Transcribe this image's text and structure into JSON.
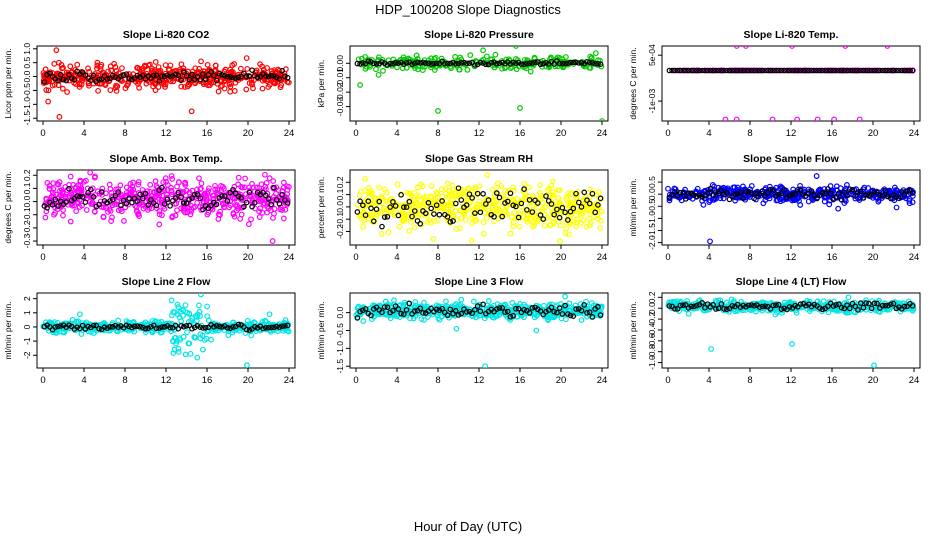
{
  "figure": {
    "title": "HDP_100208  Slope Diagnostics",
    "xlabel": "Hour of Day (UTC)"
  },
  "chart_data": [
    {
      "type": "scatter",
      "title": "Slope Li-820 CO2",
      "ylabel": "Licor ppm per min.",
      "xlim": [
        0,
        24
      ],
      "ylim": [
        -1.6,
        1.1
      ],
      "xticks": [
        "0",
        "4",
        "8",
        "12",
        "16",
        "20",
        "24"
      ],
      "yticks": [
        1,
        0.5,
        0,
        -0.5,
        -1,
        -1.5
      ],
      "ytick_labels": [
        "1.0",
        "0.5",
        "0.0",
        "-0.5",
        "-1.0",
        "-1.5"
      ],
      "color": "#ff0000",
      "spread": 0.32,
      "center": 0,
      "black_spread": 0.12,
      "outliers": [
        [
          1.3,
          0.95
        ],
        [
          14.5,
          -1.25
        ],
        [
          1.6,
          -1.45
        ],
        [
          0.5,
          -0.9
        ]
      ],
      "series": [
        {
          "name": "",
          "color": "#ff0000",
          "n_points": 480
        },
        {
          "name": "",
          "color": "#000000",
          "n_points": 90
        }
      ]
    },
    {
      "type": "scatter",
      "title": "Slope Li-820 Pressure",
      "ylabel": "kPa per min.",
      "xlim": [
        0,
        24
      ],
      "ylim": [
        -0.04,
        0.012
      ],
      "xticks": [
        "0",
        "4",
        "8",
        "12",
        "16",
        "20",
        "24"
      ],
      "yticks": [
        0,
        -0.01,
        -0.02,
        -0.03
      ],
      "ytick_labels": [
        "0.00",
        "-0.01",
        "-0.02",
        "-0.03"
      ],
      "color": "#00cc00",
      "spread": 0.0035,
      "center": 0,
      "black_spread": 0.0008,
      "outliers": [
        [
          8,
          -0.033
        ],
        [
          16,
          -0.031
        ],
        [
          24,
          -0.04
        ],
        [
          0.4,
          -0.015
        ],
        [
          12.4,
          0.009
        ],
        [
          15.6,
          0.012
        ],
        [
          13.6,
          0.006
        ],
        [
          2.2,
          -0.008
        ],
        [
          23.4,
          0.007
        ]
      ],
      "series": [
        {
          "name": "",
          "color": "#00cc00",
          "n_points": 230
        },
        {
          "name": "",
          "color": "#000000",
          "n_points": 90
        }
      ]
    },
    {
      "type": "scatter",
      "title": "Slope Li-820 Temp.",
      "ylabel": "degrees C per min.",
      "xlim": [
        0,
        24
      ],
      "ylim": [
        -0.00165,
        0.0008
      ],
      "xticks": [
        "0",
        "4",
        "8",
        "12",
        "16",
        "20",
        "24"
      ],
      "yticks": [
        0.0005,
        -0.001
      ],
      "ytick_labels": [
        "5e-04",
        "-1e-03"
      ],
      "color": "#ff00ff",
      "spread": 0,
      "center": 0,
      "black_spread": 0,
      "line_band": true,
      "outliers": [
        [
          6.7,
          0.0008
        ],
        [
          7.6,
          0.0008
        ],
        [
          12.1,
          0.0008
        ],
        [
          17.3,
          0.0008
        ],
        [
          21.4,
          0.0008
        ],
        [
          6.7,
          -0.0016
        ],
        [
          12.6,
          -0.0016
        ],
        [
          14.6,
          -0.0016
        ],
        [
          16.2,
          -0.0016
        ],
        [
          18.7,
          -0.0016
        ],
        [
          5.6,
          -0.0016
        ],
        [
          10.2,
          -0.0016
        ]
      ],
      "series": [
        {
          "name": "",
          "color": "#ff00ff",
          "n_points": 150
        },
        {
          "name": "",
          "color": "#000000",
          "n_points": 90
        }
      ]
    },
    {
      "type": "scatter",
      "title": "Slope Amb. Box Temp.",
      "ylabel": "degrees C per min.",
      "xlim": [
        0,
        24
      ],
      "ylim": [
        -0.33,
        0.24
      ],
      "xticks": [
        "0",
        "4",
        "8",
        "12",
        "16",
        "20",
        "24"
      ],
      "yticks": [
        0.2,
        0.1,
        0,
        -0.1,
        -0.2,
        -0.3
      ],
      "ytick_labels": [
        "0.2",
        "0.1",
        "0.0",
        "-0.1",
        "-0.2",
        "-0.3"
      ],
      "color": "#ff00ff",
      "spread": 0.1,
      "center": 0.02,
      "black_spread": 0.06,
      "outliers": [
        [
          22.4,
          -0.3
        ],
        [
          4.6,
          0.22
        ],
        [
          2.7,
          0.19
        ]
      ],
      "series": [
        {
          "name": "",
          "color": "#ff00ff",
          "n_points": 520
        },
        {
          "name": "",
          "color": "#000000",
          "n_points": 90
        }
      ]
    },
    {
      "type": "scatter",
      "title": "Slope Gas Stream RH",
      "ylabel": "percent per min.",
      "xlim": [
        0,
        24
      ],
      "ylim": [
        -0.31,
        0.3
      ],
      "xticks": [
        "0",
        "4",
        "8",
        "12",
        "16",
        "20",
        "24"
      ],
      "yticks": [
        0.2,
        0.1,
        0,
        -0.1,
        -0.2
      ],
      "ytick_labels": [
        "0.2",
        "0.1",
        "0.0",
        "-0.1",
        "-0.2"
      ],
      "color": "#ffff00",
      "spread": 0.13,
      "center": 0,
      "black_spread": 0.1,
      "outliers": [
        [
          19.9,
          -0.28
        ],
        [
          12.8,
          0.26
        ],
        [
          2.5,
          -0.22
        ]
      ],
      "series": [
        {
          "name": "",
          "color": "#ffff00",
          "n_points": 520
        },
        {
          "name": "",
          "color": "#000000",
          "n_points": 90
        }
      ]
    },
    {
      "type": "scatter",
      "title": "Slope Sample Flow",
      "ylabel": "ml/min per min.",
      "xlim": [
        0,
        24
      ],
      "ylim": [
        -2.1,
        1.0
      ],
      "xticks": [
        "0",
        "4",
        "8",
        "12",
        "16",
        "20",
        "24"
      ],
      "yticks": [
        0.5,
        0,
        -0.5,
        -1,
        -1.5,
        -2
      ],
      "ytick_labels": [
        "0.5",
        "0.0",
        "-0.5",
        "-1.0",
        "-1.5",
        "-2.0"
      ],
      "color": "#0000ff",
      "spread": 0.22,
      "center": 0,
      "black_spread": 0.15,
      "outliers": [
        [
          4.1,
          -1.95
        ],
        [
          14.5,
          0.75
        ],
        [
          22.3,
          -0.55
        ],
        [
          16.6,
          -0.6
        ]
      ],
      "series": [
        {
          "name": "",
          "color": "#0000ff",
          "n_points": 420
        },
        {
          "name": "",
          "color": "#000000",
          "n_points": 90
        }
      ]
    },
    {
      "type": "scatter",
      "title": "Slope Line 2 Flow",
      "ylabel": "ml/min per min.",
      "xlim": [
        0,
        24
      ],
      "ylim": [
        -2.9,
        2.4
      ],
      "xticks": [
        "0",
        "4",
        "8",
        "12",
        "16",
        "20",
        "24"
      ],
      "yticks": [
        2,
        1,
        0,
        -1,
        -2
      ],
      "ytick_labels": [
        "2",
        "1",
        "0",
        "-1",
        "-2"
      ],
      "color": "#00e5e5",
      "spread": 0.3,
      "center": 0,
      "black_spread": 0.12,
      "burst": [
        12.5,
        16.5,
        1.3
      ],
      "outliers": [
        [
          19.9,
          -2.7
        ],
        [
          14.4,
          -1.9
        ],
        [
          15.6,
          -1.6
        ],
        [
          15.4,
          2.3
        ],
        [
          13.2,
          1.4
        ],
        [
          16.4,
          -0.9
        ],
        [
          22.1,
          0.9
        ],
        [
          3.6,
          0.9
        ]
      ],
      "series": [
        {
          "name": "",
          "color": "#00e5e5",
          "n_points": 460
        },
        {
          "name": "",
          "color": "#000000",
          "n_points": 90
        }
      ]
    },
    {
      "type": "scatter",
      "title": "Slope Line 3 Flow",
      "ylabel": "ml/min per min.",
      "xlim": [
        0,
        24
      ],
      "ylim": [
        -1.55,
        0.55
      ],
      "xticks": [
        "0",
        "4",
        "8",
        "12",
        "16",
        "20",
        "24"
      ],
      "yticks": [
        0,
        -0.5,
        -1,
        -1.5
      ],
      "ytick_labels": [
        "0.0",
        "-0.5",
        "-1.0",
        "-1.5"
      ],
      "color": "#00e5e5",
      "spread": 0.16,
      "center": 0.05,
      "black_spread": 0.12,
      "outliers": [
        [
          12.6,
          -1.5
        ],
        [
          20.4,
          0.45
        ],
        [
          17.6,
          -0.5
        ],
        [
          9.8,
          -0.45
        ]
      ],
      "series": [
        {
          "name": "",
          "color": "#00e5e5",
          "n_points": 480
        },
        {
          "name": "",
          "color": "#000000",
          "n_points": 90
        }
      ]
    },
    {
      "type": "scatter",
      "title": "Slope Line 4 (LT) Flow",
      "ylabel": "ml/min per min.",
      "xlim": [
        0,
        24
      ],
      "ylim": [
        -1.1,
        0.28
      ],
      "xticks": [
        "0",
        "4",
        "8",
        "12",
        "16",
        "20",
        "24"
      ],
      "yticks": [
        0.2,
        0,
        -0.2,
        -0.4,
        -0.6,
        -0.8,
        -1
      ],
      "ytick_labels": [
        "0.2",
        "0.0",
        "-0.2",
        "-0.4",
        "-0.6",
        "-0.8",
        "-1.0"
      ],
      "color": "#00e5e5",
      "spread": 0.07,
      "center": 0.03,
      "black_spread": 0.05,
      "outliers": [
        [
          4.2,
          -0.75
        ],
        [
          12.1,
          -0.66
        ],
        [
          20.1,
          -1.05
        ],
        [
          17.6,
          0.2
        ]
      ],
      "series": [
        {
          "name": "",
          "color": "#00e5e5",
          "n_points": 480
        },
        {
          "name": "",
          "color": "#000000",
          "n_points": 90
        }
      ]
    }
  ]
}
